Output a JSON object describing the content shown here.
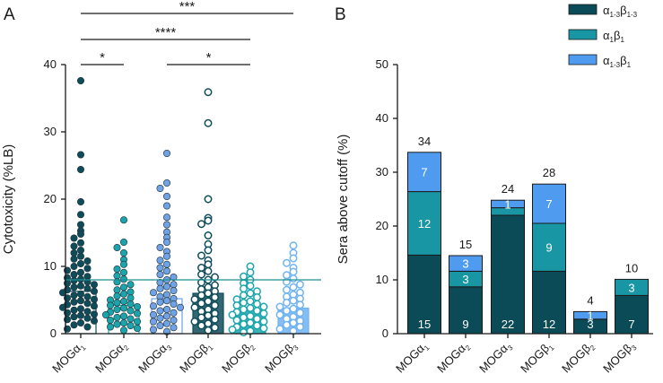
{
  "colors": {
    "a1": "#0f4c5a",
    "a2": "#1aa5ad",
    "a3": "#6fa2e6",
    "b1": "#0f4c5a",
    "b2": "#1aa5ad",
    "b3": "#6fb3f2",
    "dark": "#0b4a57",
    "teal": "#1896a4",
    "blue": "#4f9bf0",
    "cutoff": "#1f8f96"
  },
  "chart_data": [
    {
      "panel": "A",
      "type": "scatter",
      "ylabel": "Cytotoxicity (%LB)",
      "ylim": [
        0,
        40
      ],
      "yticks": [
        "0",
        "10",
        "20",
        "30",
        "40"
      ],
      "cutoff": 8,
      "groups": [
        {
          "name": "MOGα",
          "sub": "1",
          "bar": 6.3,
          "color": "a1",
          "fill": "filled",
          "points": [
            37.6,
            26.6,
            24.4,
            19.6,
            17.7,
            16.2,
            15.3,
            14.8,
            14.2,
            13.5,
            13.0,
            12.4,
            12.0,
            11.5,
            11.1,
            10.8,
            10.4,
            10.0,
            9.7,
            9.4,
            9.1,
            8.8,
            8.5,
            8.3,
            8.1,
            7.9,
            7.7,
            7.5,
            7.3,
            7.1,
            6.9,
            6.7,
            6.5,
            6.3,
            6.1,
            5.9,
            5.7,
            5.5,
            5.3,
            5.1,
            4.9,
            4.7,
            4.5,
            4.3,
            4.1,
            3.9,
            3.7,
            3.5,
            3.3,
            3.1,
            2.9,
            2.7,
            2.5,
            2.3,
            2.1,
            1.9,
            1.6,
            1.3,
            1.0,
            0.7
          ]
        },
        {
          "name": "MOGα",
          "sub": "2",
          "bar": 4.2,
          "color": "a2",
          "fill": "filled",
          "points": [
            16.9,
            13.6,
            12.8,
            12.0,
            11.0,
            10.3,
            9.6,
            9.1,
            8.6,
            8.1,
            7.7,
            7.3,
            6.9,
            6.5,
            6.2,
            5.9,
            5.6,
            5.3,
            5.0,
            4.8,
            4.6,
            4.4,
            4.2,
            4.0,
            3.8,
            3.6,
            3.4,
            3.2,
            3.0,
            2.8,
            2.6,
            2.4,
            2.2,
            2.0,
            1.8,
            1.6,
            1.4,
            1.2,
            1.0,
            0.8,
            0.5
          ]
        },
        {
          "name": "MOGα",
          "sub": "3",
          "bar": 5.2,
          "color": "a3",
          "fill": "filled",
          "points": [
            26.8,
            22.4,
            21.6,
            20.4,
            19.0,
            17.3,
            16.2,
            15.1,
            14.3,
            13.6,
            12.8,
            12.2,
            11.5,
            10.9,
            10.3,
            9.8,
            9.3,
            8.8,
            8.4,
            8.0,
            7.6,
            7.3,
            7.0,
            6.7,
            6.4,
            6.1,
            5.8,
            5.5,
            5.2,
            4.9,
            4.7,
            4.4,
            4.1,
            3.9,
            3.6,
            3.4,
            3.1,
            2.8,
            2.6,
            2.3,
            2.0,
            1.8,
            1.5,
            1.2,
            0.9,
            0.6,
            0.3
          ]
        },
        {
          "name": "MOGβ",
          "sub": "1",
          "bar": 6.0,
          "color": "b1",
          "fill": "open",
          "points": [
            35.9,
            31.3,
            20.0,
            17.2,
            16.8,
            16.3,
            14.6,
            13.3,
            12.4,
            11.6,
            10.9,
            10.3,
            9.8,
            9.3,
            8.8,
            8.4,
            8.0,
            7.6,
            7.2,
            6.9,
            6.6,
            6.3,
            6.0,
            5.7,
            5.4,
            5.1,
            4.8,
            4.5,
            4.2,
            3.9,
            3.6,
            3.3,
            3.0,
            2.7,
            2.4,
            2.1,
            1.8,
            1.5,
            1.2,
            0.9,
            0.5
          ]
        },
        {
          "name": "MOGβ",
          "sub": "2",
          "bar": 3.6,
          "color": "b2",
          "fill": "open",
          "points": [
            10.0,
            9.1,
            8.5,
            8.0,
            7.5,
            7.1,
            6.7,
            6.3,
            6.0,
            5.7,
            5.4,
            5.1,
            4.8,
            4.6,
            4.4,
            4.2,
            4.0,
            3.8,
            3.6,
            3.4,
            3.2,
            3.0,
            2.8,
            2.6,
            2.4,
            2.2,
            2.0,
            1.8,
            1.6,
            1.4,
            1.2,
            1.0,
            0.8,
            0.6,
            0.4,
            0.2
          ]
        },
        {
          "name": "MOGβ",
          "sub": "3",
          "bar": 3.8,
          "color": "b3",
          "fill": "open",
          "points": [
            13.1,
            12.0,
            11.2,
            10.5,
            9.8,
            9.2,
            8.7,
            8.2,
            7.7,
            7.3,
            6.9,
            6.5,
            6.1,
            5.8,
            5.5,
            5.2,
            4.9,
            4.6,
            4.3,
            4.0,
            3.7,
            3.4,
            3.1,
            2.8,
            2.5,
            2.2,
            1.9,
            1.6,
            1.3,
            1.0,
            0.7,
            0.4
          ]
        }
      ],
      "significance": [
        {
          "label": "***",
          "from": 0,
          "to": 5,
          "level": 3
        },
        {
          "label": "****",
          "from": 0,
          "to": 4,
          "level": 2
        },
        {
          "label": "*",
          "from": 0,
          "to": 1,
          "level": 1
        },
        {
          "label": "*",
          "from": 2,
          "to": 4,
          "level": 1
        }
      ]
    },
    {
      "panel": "B",
      "type": "bar",
      "stacked": true,
      "ylabel": "Sera above cutoff (%)",
      "ylim": [
        0,
        50
      ],
      "yticks": [
        "0",
        "10",
        "20",
        "30",
        "40",
        "50"
      ],
      "categories": [
        {
          "name": "MOGα",
          "sub": "1"
        },
        {
          "name": "MOGα",
          "sub": "2"
        },
        {
          "name": "MOGα",
          "sub": "3"
        },
        {
          "name": "MOGβ",
          "sub": "1"
        },
        {
          "name": "MOGβ",
          "sub": "2"
        },
        {
          "name": "MOGβ",
          "sub": "3"
        }
      ],
      "totals": [
        "34",
        "15",
        "24",
        "28",
        "4",
        "10"
      ],
      "series": [
        {
          "name": "α1-3β1-3",
          "color": "dark",
          "values": [
            14.6,
            8.7,
            22.0,
            11.6,
            2.7,
            7.1
          ],
          "labels": [
            "15",
            "9",
            "22",
            "12",
            "3",
            "7"
          ]
        },
        {
          "name": "α1β1",
          "color": "teal",
          "values": [
            11.8,
            2.9,
            1.4,
            8.9,
            0,
            3.0
          ],
          "labels": [
            "12",
            "3",
            "",
            "9",
            "",
            "3"
          ]
        },
        {
          "name": "α1-3β1",
          "color": "blue",
          "values": [
            7.3,
            2.9,
            1.4,
            7.3,
            1.4,
            0
          ],
          "labels": [
            "7",
            "3",
            "1",
            "7",
            "1",
            ""
          ]
        }
      ],
      "legend": [
        {
          "main": "α",
          "sub1": "1-3",
          "mid": "β",
          "sub2": "1-3",
          "color": "dark"
        },
        {
          "main": "α",
          "sub1": "1",
          "mid": "β",
          "sub2": "1",
          "color": "teal"
        },
        {
          "main": "α",
          "sub1": "1-3",
          "mid": "β",
          "sub2": "1",
          "color": "blue"
        }
      ]
    }
  ]
}
